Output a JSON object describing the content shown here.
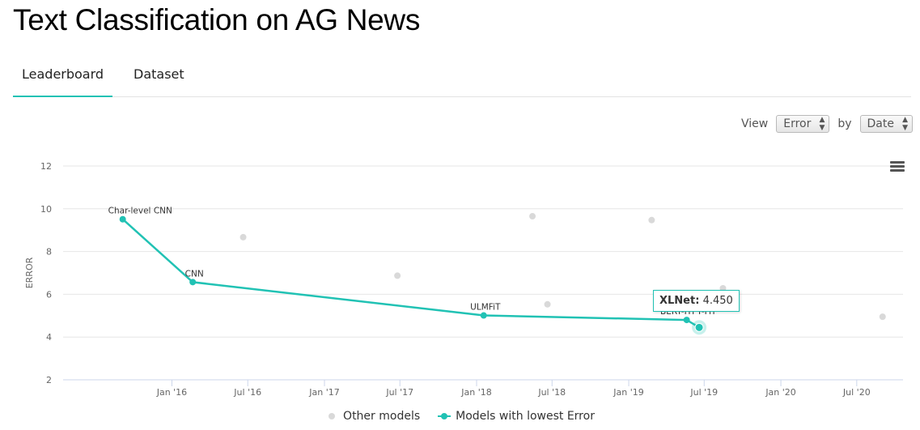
{
  "page": {
    "title": "Text Classification on AG News"
  },
  "tabs": [
    {
      "label": "Leaderboard",
      "active": true
    },
    {
      "label": "Dataset",
      "active": false
    }
  ],
  "view_controls": {
    "view_label": "View",
    "view_value": "Error",
    "by_label": "by",
    "by_value": "Date"
  },
  "tooltip": {
    "model": "XLNet",
    "value": "4.450"
  },
  "legend": {
    "other": "Other models",
    "best": "Models with lowest Error"
  },
  "colors": {
    "accent": "#21c2b4",
    "other_point": "#d9d9d9",
    "grid": "#e6e6e6"
  },
  "icons": {
    "menu": "hamburger-menu-icon"
  },
  "chart_data": {
    "type": "scatter",
    "ylabel": "ERROR",
    "ylim": [
      2,
      12
    ],
    "yticks": [
      2,
      4,
      6,
      8,
      10,
      12
    ],
    "xlim": [
      "2015-04-15",
      "2020-10-20"
    ],
    "xticks": [
      {
        "date": "2016-01-01",
        "label": "Jan '16"
      },
      {
        "date": "2016-07-01",
        "label": "Jul '16"
      },
      {
        "date": "2017-01-01",
        "label": "Jan '17"
      },
      {
        "date": "2017-07-01",
        "label": "Jul '17"
      },
      {
        "date": "2018-01-01",
        "label": "Jan '18"
      },
      {
        "date": "2018-07-01",
        "label": "Jul '18"
      },
      {
        "date": "2019-01-01",
        "label": "Jan '19"
      },
      {
        "date": "2019-07-01",
        "label": "Jul '19"
      },
      {
        "date": "2020-01-01",
        "label": "Jan '20"
      },
      {
        "date": "2020-07-01",
        "label": "Jul '20"
      }
    ],
    "grid": true,
    "legend_position": "bottom",
    "series": [
      {
        "name": "Other models",
        "points": [
          {
            "date": "2016-06-20",
            "value": 8.67
          },
          {
            "date": "2017-06-25",
            "value": 6.87
          },
          {
            "date": "2018-05-15",
            "value": 9.65
          },
          {
            "date": "2018-06-20",
            "value": 5.53
          },
          {
            "date": "2019-02-25",
            "value": 9.47
          },
          {
            "date": "2019-08-15",
            "value": 6.28
          },
          {
            "date": "2020-09-01",
            "value": 4.95
          }
        ]
      },
      {
        "name": "Models with lowest Error",
        "points": [
          {
            "date": "2015-09-05",
            "value": 9.51,
            "label": "Char-level CNN"
          },
          {
            "date": "2016-02-20",
            "value": 6.57,
            "label": "CNN"
          },
          {
            "date": "2018-01-18",
            "value": 5.01,
            "label": "ULMFiT"
          },
          {
            "date": "2019-05-20",
            "value": 4.8,
            "label": "BERT-ITPT-FiT"
          },
          {
            "date": "2019-06-19",
            "value": 4.45,
            "label": "XLNet"
          }
        ]
      }
    ]
  }
}
